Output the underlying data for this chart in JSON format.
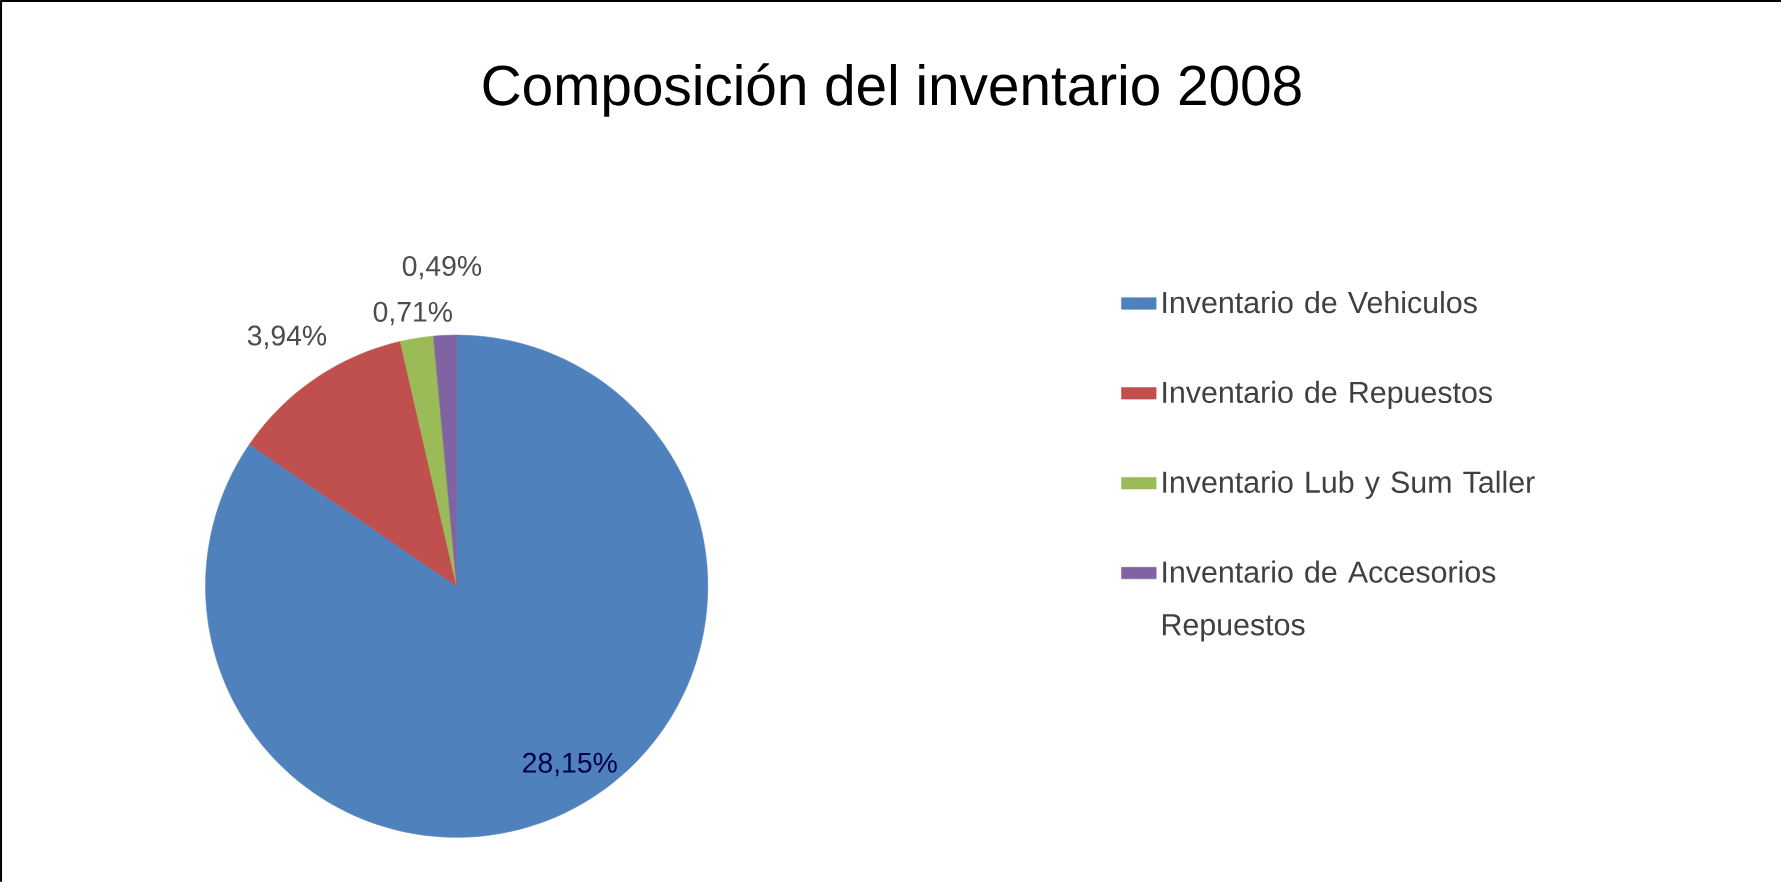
{
  "chart_data": {
    "type": "pie",
    "title": "Composición del inventario 2008",
    "categories": [
      "Inventario de Vehiculos",
      "Inventario de Repuestos",
      "Inventario Lub y Sum Taller",
      "Inventario de Accesorios Repuestos"
    ],
    "values": [
      28.15,
      3.94,
      0.71,
      0.49
    ],
    "value_labels": [
      "28,15%",
      "3,94%",
      "0,71%",
      "0,49%"
    ],
    "colors": [
      "#4f81bd",
      "#c0504d",
      "#9bbb59",
      "#8064a2"
    ],
    "legend": "right"
  }
}
